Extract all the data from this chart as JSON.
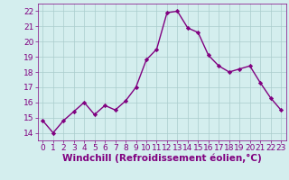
{
  "x": [
    0,
    1,
    2,
    3,
    4,
    5,
    6,
    7,
    8,
    9,
    10,
    11,
    12,
    13,
    14,
    15,
    16,
    17,
    18,
    19,
    20,
    21,
    22,
    23
  ],
  "y": [
    14.8,
    14.0,
    14.8,
    15.4,
    16.0,
    15.2,
    15.8,
    15.5,
    16.1,
    17.0,
    18.8,
    19.5,
    21.9,
    22.0,
    20.9,
    20.6,
    19.1,
    18.4,
    18.0,
    18.2,
    18.4,
    17.3,
    16.3,
    15.5
  ],
  "line_color": "#800080",
  "marker": "D",
  "marker_size": 2.2,
  "bg_color": "#d4eeee",
  "grid_color": "#aacccc",
  "xlabel": "Windchill (Refroidissement éolien,°C)",
  "xlabel_color": "#800080",
  "ylim": [
    13.5,
    22.5
  ],
  "yticks": [
    14,
    15,
    16,
    17,
    18,
    19,
    20,
    21,
    22
  ],
  "xticks": [
    0,
    1,
    2,
    3,
    4,
    5,
    6,
    7,
    8,
    9,
    10,
    11,
    12,
    13,
    14,
    15,
    16,
    17,
    18,
    19,
    20,
    21,
    22,
    23
  ],
  "tick_color": "#800080",
  "tick_labelsize": 6.5,
  "xlabel_fontsize": 7.5,
  "linewidth": 1.0
}
